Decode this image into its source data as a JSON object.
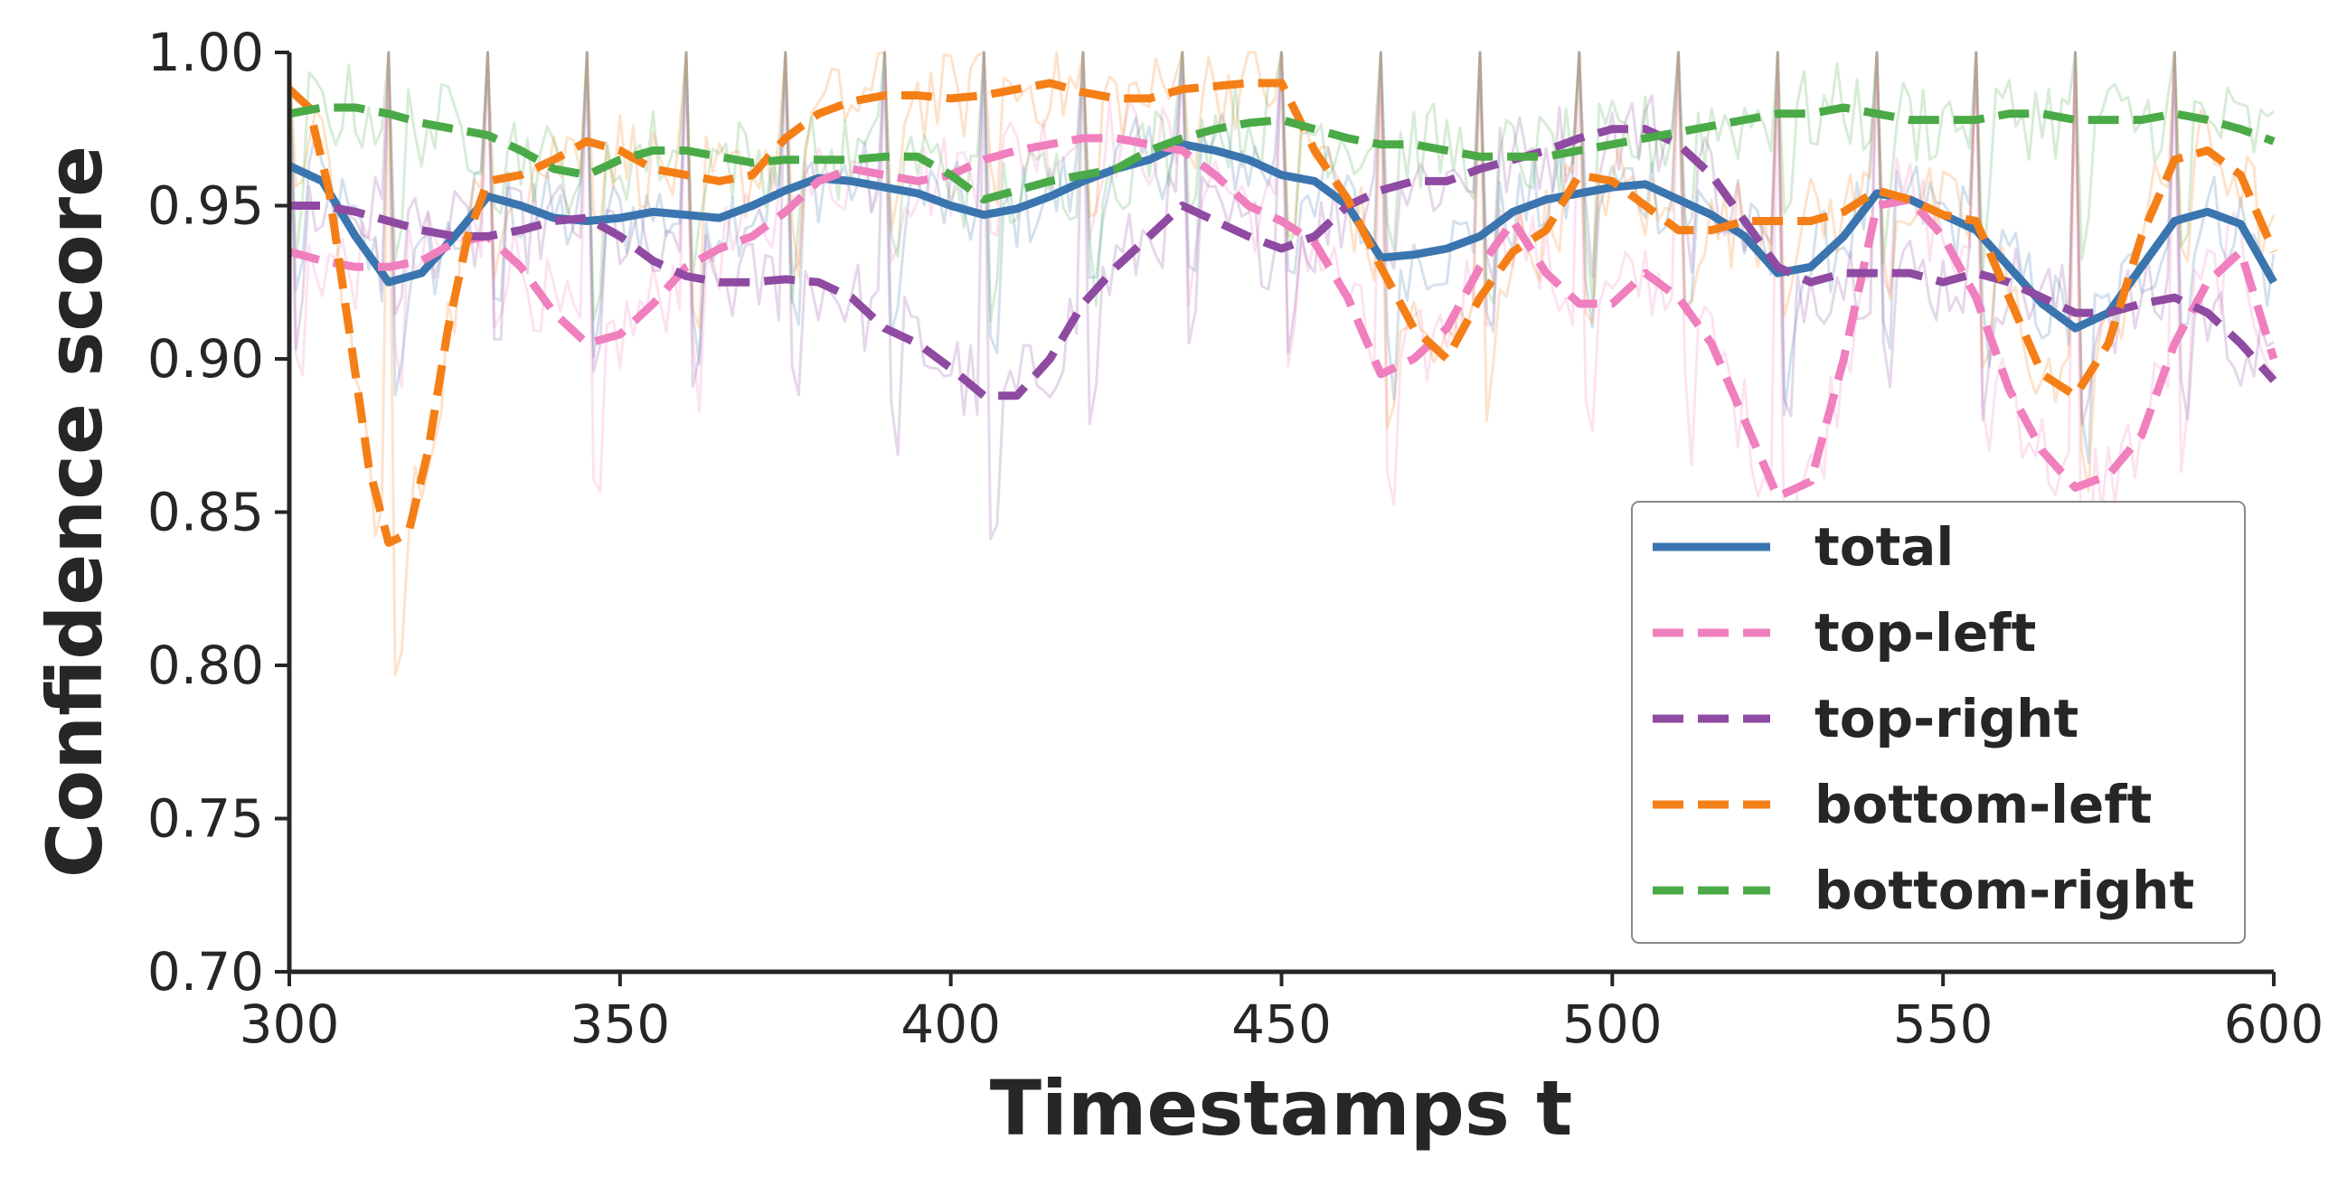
{
  "chart_data": {
    "type": "line",
    "xlabel": "Timestamps t",
    "ylabel": "Confidence score",
    "xlim": [
      300,
      600
    ],
    "ylim": [
      0.7,
      1.0
    ],
    "xticks": [
      "300",
      "350",
      "400",
      "450",
      "500",
      "550",
      "600"
    ],
    "yticks": [
      "0.70",
      "0.75",
      "0.80",
      "0.85",
      "0.90",
      "0.95",
      "1.00"
    ],
    "grid": false,
    "legend_position": "lower-right",
    "spike_times": [
      300,
      315,
      330,
      345,
      360,
      375,
      390,
      405,
      420,
      435,
      450,
      465,
      480,
      495,
      510,
      525,
      540,
      555,
      570,
      585
    ],
    "series": [
      {
        "name": "total",
        "color": "#3b75af",
        "style": "solid",
        "x": [
          300,
          305,
          310,
          315,
          320,
          325,
          330,
          335,
          340,
          345,
          350,
          355,
          360,
          365,
          370,
          375,
          380,
          385,
          390,
          395,
          400,
          405,
          410,
          415,
          420,
          425,
          430,
          435,
          440,
          445,
          450,
          455,
          460,
          465,
          470,
          475,
          480,
          485,
          490,
          495,
          500,
          505,
          510,
          515,
          520,
          525,
          530,
          535,
          540,
          545,
          550,
          555,
          560,
          565,
          570,
          575,
          580,
          585,
          590,
          595,
          600
        ],
        "y": [
          0.963,
          0.958,
          0.94,
          0.925,
          0.928,
          0.94,
          0.953,
          0.95,
          0.946,
          0.945,
          0.946,
          0.948,
          0.947,
          0.946,
          0.95,
          0.955,
          0.959,
          0.958,
          0.956,
          0.954,
          0.95,
          0.947,
          0.949,
          0.953,
          0.958,
          0.962,
          0.965,
          0.97,
          0.968,
          0.965,
          0.96,
          0.958,
          0.95,
          0.933,
          0.934,
          0.936,
          0.94,
          0.948,
          0.952,
          0.954,
          0.956,
          0.957,
          0.952,
          0.947,
          0.94,
          0.928,
          0.93,
          0.94,
          0.954,
          0.952,
          0.947,
          0.942,
          0.93,
          0.918,
          0.91,
          0.915,
          0.93,
          0.945,
          0.948,
          0.944,
          0.925
        ]
      },
      {
        "name": "top-left",
        "color": "#f07fbe",
        "style": "dashed",
        "x": [
          300,
          305,
          310,
          315,
          320,
          325,
          330,
          335,
          340,
          345,
          350,
          355,
          360,
          365,
          370,
          375,
          380,
          385,
          390,
          395,
          400,
          405,
          410,
          415,
          420,
          425,
          430,
          435,
          440,
          445,
          450,
          455,
          460,
          465,
          470,
          475,
          480,
          485,
          490,
          495,
          500,
          505,
          510,
          515,
          520,
          525,
          530,
          535,
          540,
          545,
          550,
          555,
          560,
          565,
          570,
          575,
          580,
          585,
          590,
          595,
          600
        ],
        "y": [
          0.935,
          0.932,
          0.93,
          0.93,
          0.932,
          0.938,
          0.94,
          0.93,
          0.915,
          0.905,
          0.908,
          0.918,
          0.93,
          0.936,
          0.94,
          0.948,
          0.958,
          0.962,
          0.96,
          0.958,
          0.96,
          0.965,
          0.968,
          0.97,
          0.972,
          0.972,
          0.97,
          0.968,
          0.96,
          0.95,
          0.945,
          0.938,
          0.92,
          0.895,
          0.9,
          0.91,
          0.93,
          0.945,
          0.928,
          0.918,
          0.918,
          0.928,
          0.92,
          0.905,
          0.88,
          0.855,
          0.86,
          0.9,
          0.95,
          0.952,
          0.94,
          0.92,
          0.89,
          0.87,
          0.858,
          0.862,
          0.875,
          0.905,
          0.925,
          0.935,
          0.9
        ]
      },
      {
        "name": "top-right",
        "color": "#8f4aa1",
        "style": "dashed",
        "x": [
          300,
          305,
          310,
          315,
          320,
          325,
          330,
          335,
          340,
          345,
          350,
          355,
          360,
          365,
          370,
          375,
          380,
          385,
          390,
          395,
          400,
          405,
          410,
          415,
          420,
          425,
          430,
          435,
          440,
          445,
          450,
          455,
          460,
          465,
          470,
          475,
          480,
          485,
          490,
          495,
          500,
          505,
          510,
          515,
          520,
          525,
          530,
          535,
          540,
          545,
          550,
          555,
          560,
          565,
          570,
          575,
          580,
          585,
          590,
          595,
          600
        ],
        "y": [
          0.95,
          0.95,
          0.948,
          0.945,
          0.942,
          0.94,
          0.94,
          0.942,
          0.945,
          0.946,
          0.94,
          0.932,
          0.927,
          0.925,
          0.925,
          0.926,
          0.925,
          0.92,
          0.91,
          0.905,
          0.897,
          0.888,
          0.888,
          0.9,
          0.918,
          0.93,
          0.94,
          0.95,
          0.945,
          0.94,
          0.936,
          0.94,
          0.95,
          0.955,
          0.958,
          0.958,
          0.962,
          0.965,
          0.968,
          0.972,
          0.975,
          0.975,
          0.97,
          0.96,
          0.945,
          0.93,
          0.925,
          0.928,
          0.928,
          0.928,
          0.925,
          0.928,
          0.925,
          0.92,
          0.915,
          0.915,
          0.918,
          0.92,
          0.915,
          0.905,
          0.893
        ]
      },
      {
        "name": "bottom-left",
        "color": "#f57f17",
        "style": "dashed",
        "x": [
          300,
          303,
          306,
          309,
          312,
          315,
          318,
          321,
          324,
          327,
          330,
          335,
          340,
          345,
          350,
          355,
          360,
          365,
          370,
          375,
          380,
          385,
          390,
          395,
          400,
          405,
          410,
          415,
          420,
          425,
          430,
          435,
          440,
          445,
          450,
          455,
          460,
          465,
          470,
          475,
          480,
          485,
          490,
          495,
          500,
          505,
          510,
          515,
          520,
          525,
          530,
          535,
          540,
          545,
          550,
          555,
          560,
          565,
          570,
          575,
          580,
          585,
          590,
          595,
          600
        ],
        "y": [
          0.988,
          0.982,
          0.955,
          0.91,
          0.865,
          0.84,
          0.843,
          0.87,
          0.91,
          0.94,
          0.958,
          0.96,
          0.965,
          0.971,
          0.968,
          0.962,
          0.96,
          0.958,
          0.96,
          0.972,
          0.98,
          0.984,
          0.986,
          0.986,
          0.985,
          0.986,
          0.988,
          0.99,
          0.987,
          0.985,
          0.985,
          0.988,
          0.989,
          0.99,
          0.99,
          0.968,
          0.952,
          0.93,
          0.91,
          0.9,
          0.92,
          0.935,
          0.942,
          0.96,
          0.958,
          0.95,
          0.942,
          0.942,
          0.945,
          0.945,
          0.945,
          0.948,
          0.955,
          0.952,
          0.947,
          0.945,
          0.92,
          0.895,
          0.888,
          0.905,
          0.94,
          0.965,
          0.968,
          0.96,
          0.935
        ]
      },
      {
        "name": "bottom-right",
        "color": "#4aaa47",
        "style": "dashed",
        "x": [
          300,
          305,
          310,
          315,
          320,
          325,
          330,
          335,
          340,
          345,
          350,
          355,
          360,
          365,
          370,
          375,
          380,
          385,
          390,
          395,
          400,
          405,
          410,
          415,
          420,
          425,
          430,
          435,
          440,
          445,
          450,
          455,
          460,
          465,
          470,
          475,
          480,
          485,
          490,
          495,
          500,
          505,
          510,
          515,
          520,
          525,
          530,
          535,
          540,
          545,
          550,
          555,
          560,
          565,
          570,
          575,
          580,
          585,
          590,
          595,
          600
        ],
        "y": [
          0.98,
          0.982,
          0.982,
          0.98,
          0.977,
          0.975,
          0.973,
          0.968,
          0.962,
          0.96,
          0.965,
          0.968,
          0.968,
          0.966,
          0.964,
          0.965,
          0.965,
          0.965,
          0.966,
          0.966,
          0.96,
          0.952,
          0.955,
          0.958,
          0.96,
          0.962,
          0.968,
          0.972,
          0.975,
          0.977,
          0.978,
          0.975,
          0.972,
          0.97,
          0.97,
          0.968,
          0.966,
          0.966,
          0.966,
          0.968,
          0.97,
          0.972,
          0.974,
          0.976,
          0.978,
          0.98,
          0.98,
          0.982,
          0.98,
          0.978,
          0.978,
          0.978,
          0.98,
          0.98,
          0.978,
          0.978,
          0.978,
          0.98,
          0.978,
          0.975,
          0.971
        ]
      }
    ]
  }
}
